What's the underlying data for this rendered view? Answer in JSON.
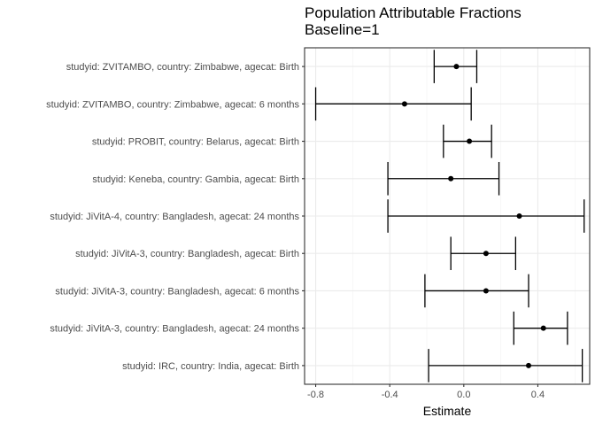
{
  "chart_data": {
    "type": "scatter",
    "title": "Population Attributable Fractions",
    "subtitle": "Baseline=1",
    "xlabel": "Estimate",
    "ylabel": "",
    "xlim": [
      -0.86,
      0.68
    ],
    "xticks": [
      -0.8,
      -0.4,
      0.0,
      0.4
    ],
    "xtick_labels": [
      "-0.8",
      "-0.4",
      "0.0",
      "0.4"
    ],
    "grid": true,
    "series": [
      {
        "categories": [
          "studyid: ZVITAMBO, country: Zimbabwe, agecat: Birth",
          "studyid: ZVITAMBO, country: Zimbabwe, agecat: 6 months",
          "studyid: PROBIT, country: Belarus, agecat: Birth",
          "studyid: Keneba, country: Gambia, agecat: Birth",
          "studyid: JiVitA-4, country: Bangladesh, agecat: 24 months",
          "studyid: JiVitA-3, country: Bangladesh, agecat: Birth",
          "studyid: JiVitA-3, country: Bangladesh, agecat: 6 months",
          "studyid: JiVitA-3, country: Bangladesh, agecat: 24 months",
          "studyid: IRC, country: India, agecat: Birth"
        ],
        "estimate": [
          -0.04,
          -0.32,
          0.03,
          -0.07,
          0.3,
          0.12,
          0.12,
          0.43,
          0.35
        ],
        "lower": [
          -0.16,
          -0.8,
          -0.11,
          -0.41,
          -0.41,
          -0.07,
          -0.21,
          0.27,
          -0.19
        ],
        "upper": [
          0.07,
          0.04,
          0.15,
          0.19,
          0.65,
          0.28,
          0.35,
          0.56,
          0.64
        ]
      }
    ]
  }
}
